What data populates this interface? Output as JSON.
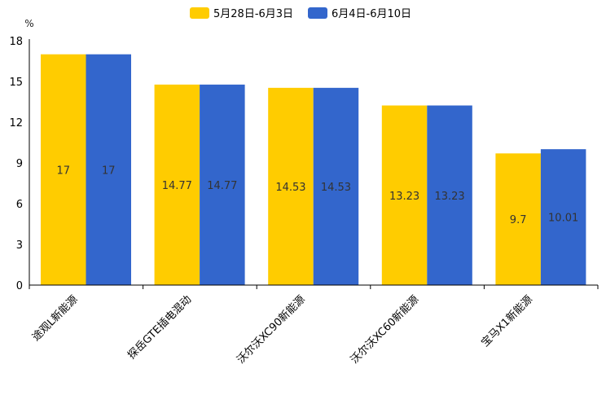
{
  "chart_data": {
    "type": "bar",
    "title": "",
    "xlabel": "",
    "ylabel": "%",
    "ylim": [
      0,
      18
    ],
    "yticks": [
      0,
      3,
      6,
      9,
      12,
      15,
      18
    ],
    "grid": false,
    "legend_position": "top-center",
    "categories": [
      "途观L新能源",
      "探岳GTE插电混动",
      "沃尔沃XC90新能源",
      "沃尔沃XC60新能源",
      "宝马X1新能源"
    ],
    "series": [
      {
        "name": "5月28日-6月3日",
        "color": "#FFCC00",
        "values": [
          17,
          14.77,
          14.53,
          13.23,
          9.7
        ]
      },
      {
        "name": "6月4日-6月10日",
        "color": "#3366CC",
        "values": [
          17,
          14.77,
          14.53,
          13.23,
          10.01
        ]
      }
    ]
  }
}
